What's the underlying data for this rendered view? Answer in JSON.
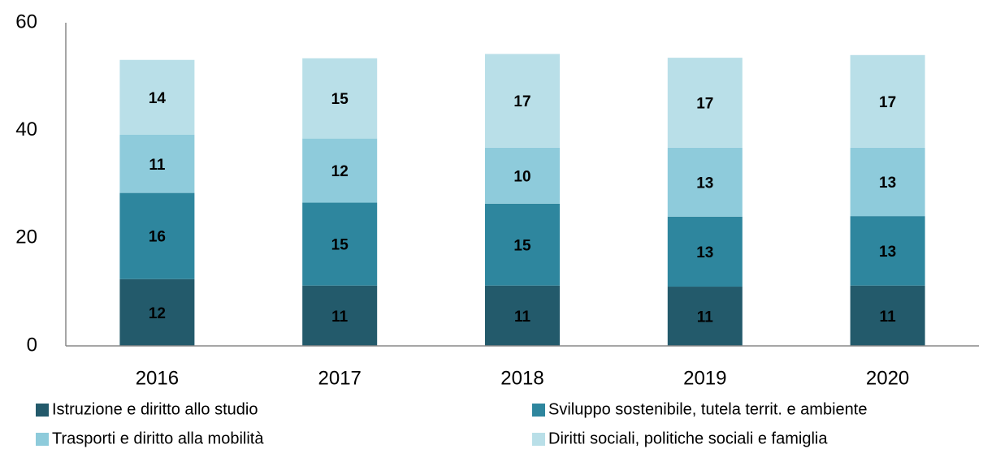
{
  "chart_data": {
    "type": "stacked_bar",
    "categories": [
      "2016",
      "2017",
      "2018",
      "2019",
      "2020"
    ],
    "series": [
      {
        "name": "Istruzione e diritto allo studio",
        "color": "#235a6b",
        "values": [
          12.4,
          11.2,
          11.2,
          11.0,
          11.2
        ],
        "value_labels": [
          "12",
          "11",
          "11",
          "11",
          "11"
        ]
      },
      {
        "name": "Sviluppo sostenibile, tutela territ. e ambiente",
        "color": "#2e869e",
        "values": [
          16.0,
          15.4,
          15.2,
          13.0,
          12.9
        ],
        "value_labels": [
          "16",
          "15",
          "15",
          "13",
          "13"
        ]
      },
      {
        "name": "Trasporti e diritto alla mobilità",
        "color": "#8ecbdb",
        "values": [
          10.8,
          11.9,
          10.4,
          12.8,
          12.7
        ],
        "value_labels": [
          "11",
          "12",
          "10",
          "13",
          "13"
        ]
      },
      {
        "name": "Diritti sociali, politiche sociali e famiglia",
        "color": "#b9dfe8",
        "values": [
          13.9,
          14.9,
          17.4,
          16.7,
          17.2
        ],
        "value_labels": [
          "14",
          "15",
          "17",
          "17",
          "17"
        ]
      }
    ],
    "ylim": [
      0,
      60
    ],
    "yticks": [
      0,
      20,
      40,
      60
    ],
    "grid": false
  }
}
